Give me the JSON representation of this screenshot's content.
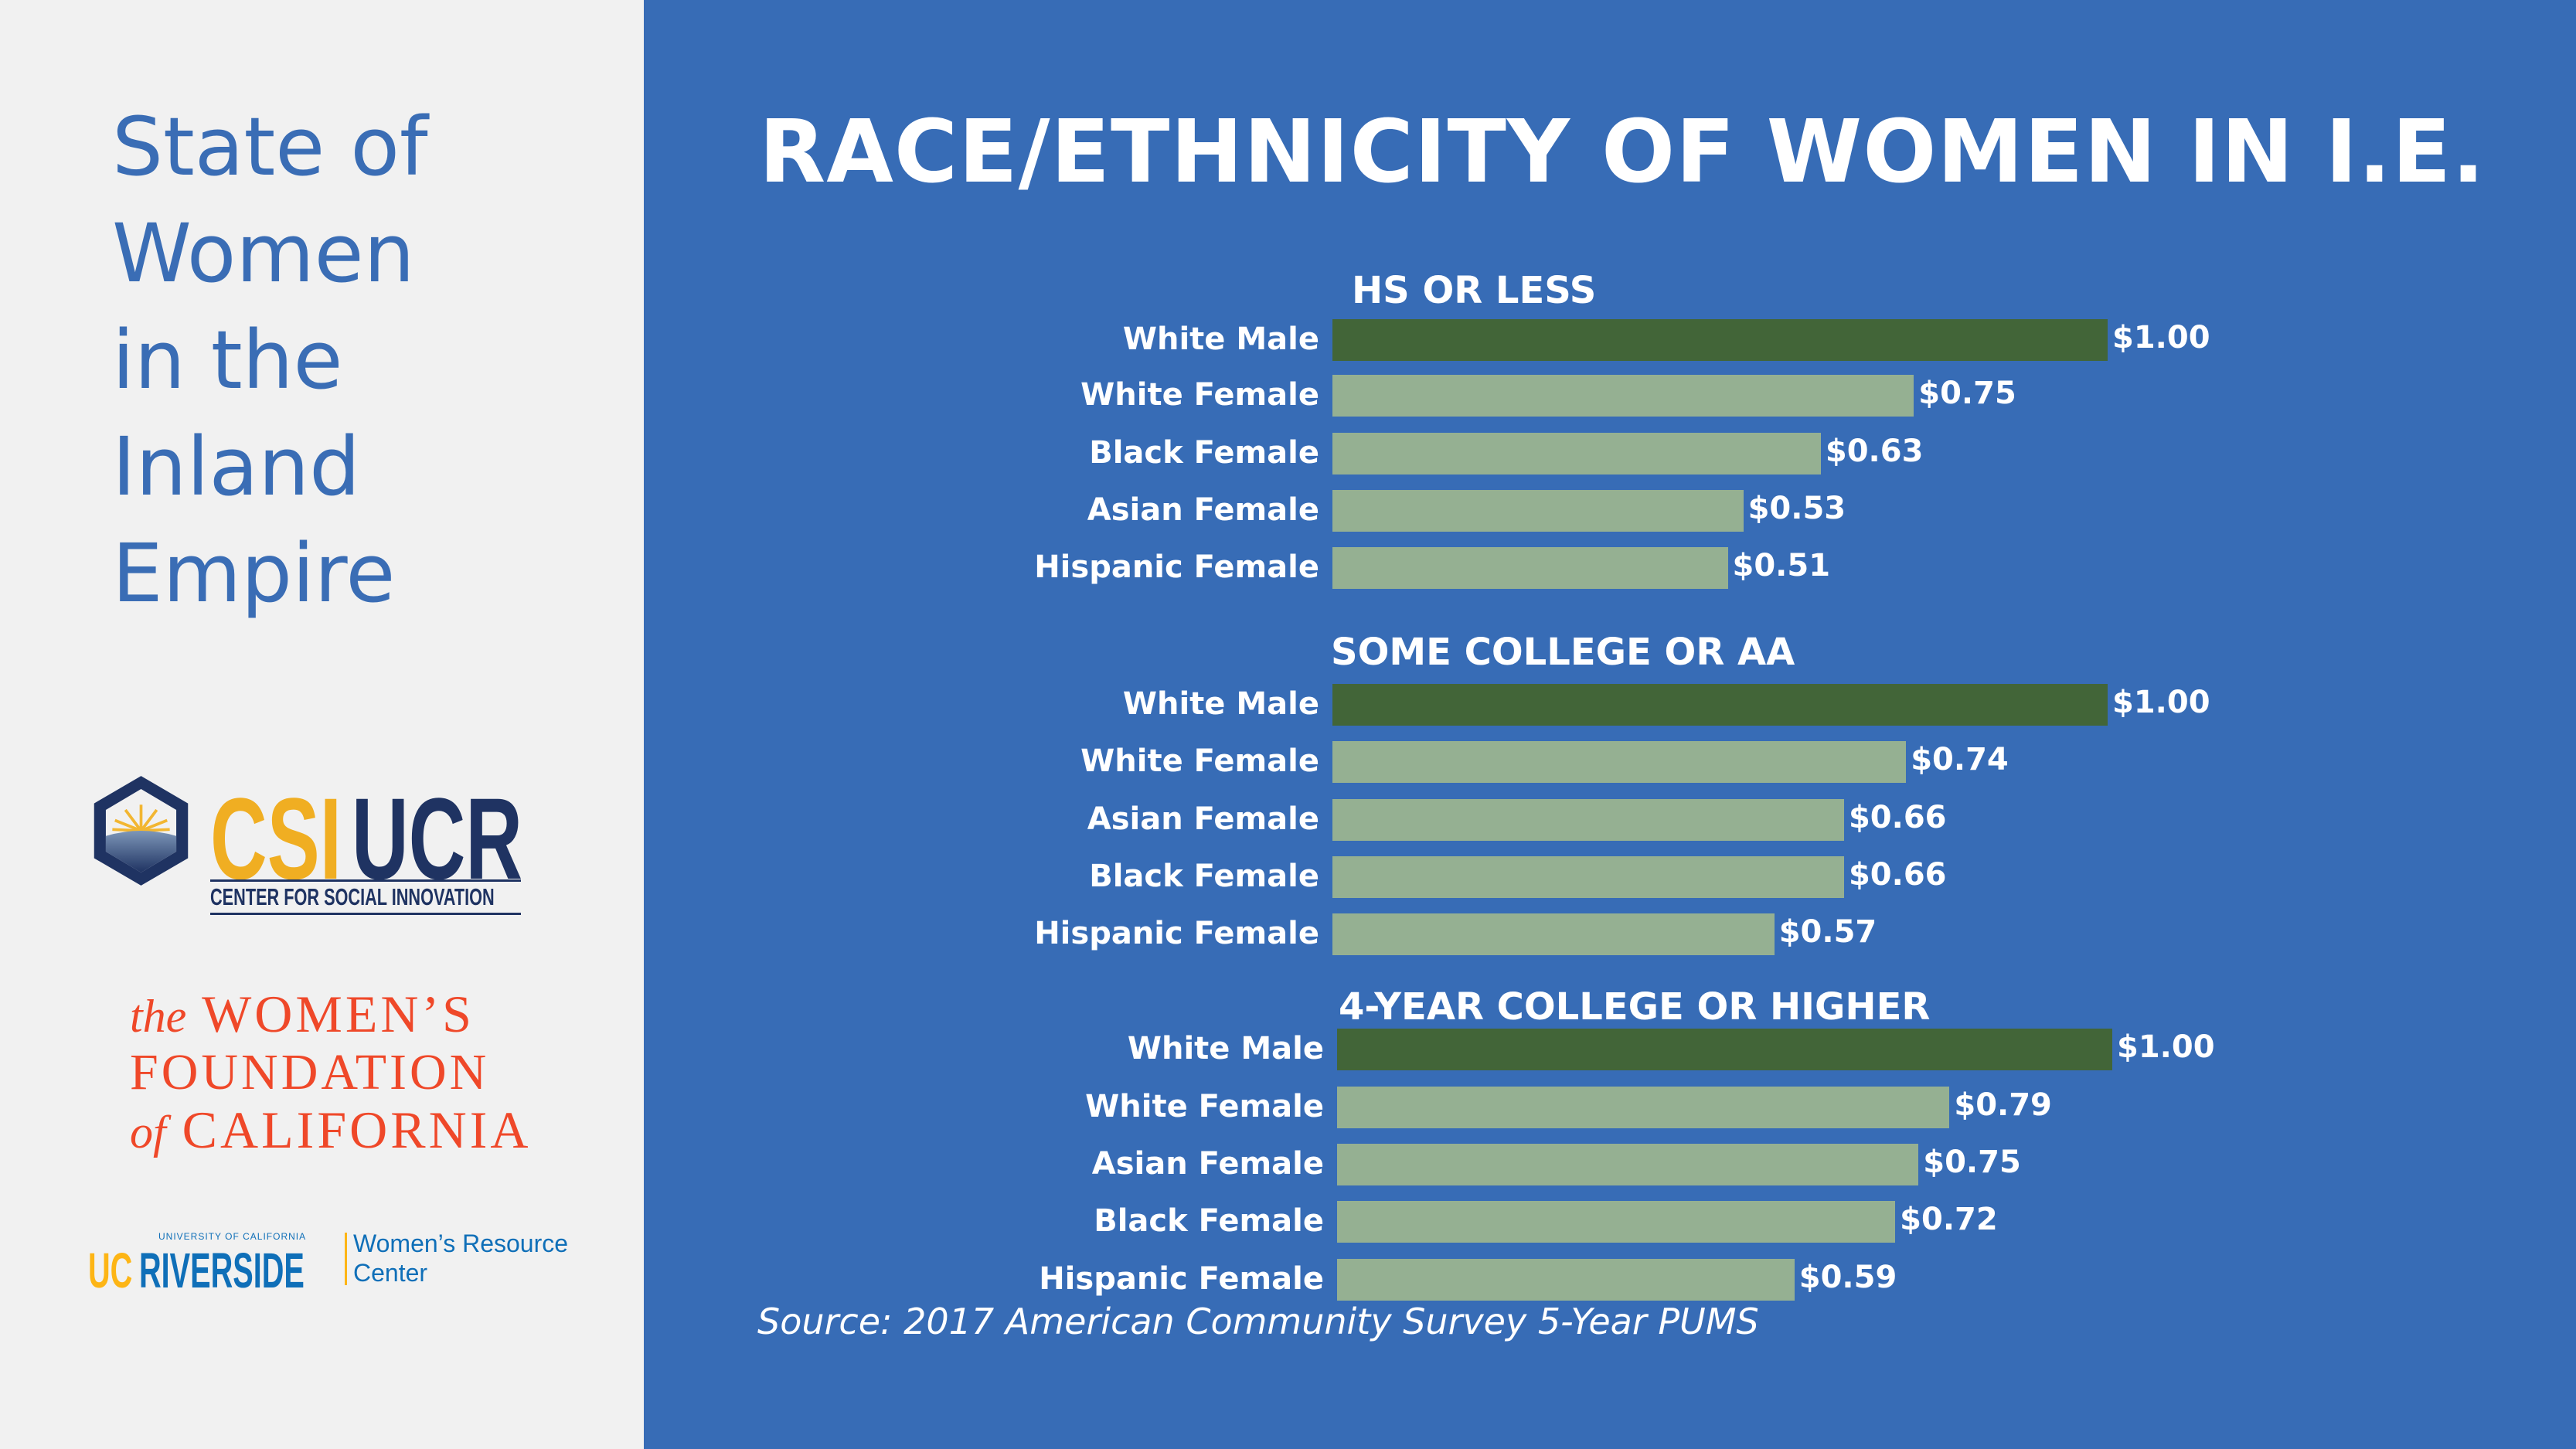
{
  "sidebar": {
    "title_lines": [
      "State of",
      "Women",
      "in the",
      "Inland",
      "Empire"
    ],
    "logos": {
      "csi": {
        "part1": "CSI",
        "part2": "UCR",
        "subtitle": "CENTER FOR SOCIAL INNOVATION"
      },
      "womens_foundation": {
        "line1_small": "the",
        "line1": "WOMEN’S",
        "line2": "FOUNDATION",
        "line3_small": "of",
        "line3": "CALIFORNIA"
      },
      "ucr": {
        "uc": "UC",
        "riverside": "RIVERSIDE",
        "univ": "UNIVERSITY OF CALIFORNIA",
        "wrc1": "Women’s Resource",
        "wrc2": "Center"
      }
    }
  },
  "colors": {
    "background": "#376cb6",
    "sidebar": "#f1f1f1",
    "reference_bar": "#426538",
    "female_bar": "#95b092",
    "title_blue": "#3a6db5"
  },
  "chart_data": {
    "type": "bar",
    "orientation": "horizontal",
    "title": "RACE/ETHNICITY OF WOMEN IN I.E.",
    "groups": [
      {
        "heading": "HS OR LESS",
        "categories": [
          "White Male",
          "White Female",
          "Black Female",
          "Asian Female",
          "Hispanic Female"
        ],
        "values": [
          1.0,
          0.75,
          0.63,
          0.53,
          0.51
        ],
        "labels": [
          "$1.00",
          "$0.75",
          "$0.63",
          "$0.53",
          "$0.51"
        ]
      },
      {
        "heading": "SOME COLLEGE OR AA",
        "categories": [
          "White Male",
          "White Female",
          "Asian Female",
          "Black Female",
          "Hispanic Female"
        ],
        "values": [
          1.0,
          0.74,
          0.66,
          0.66,
          0.57
        ],
        "labels": [
          "$1.00",
          "$0.74",
          "$0.66",
          "$0.66",
          "$0.57"
        ]
      },
      {
        "heading": "4-YEAR COLLEGE OR HIGHER",
        "categories": [
          "White Male",
          "White Female",
          "Asian Female",
          "Black Female",
          "Hispanic Female"
        ],
        "values": [
          1.0,
          0.79,
          0.75,
          0.72,
          0.59
        ],
        "labels": [
          "$1.00",
          "$0.79",
          "$0.75",
          "$0.72",
          "$0.59"
        ]
      }
    ],
    "xlim": [
      0,
      1.0
    ],
    "grid": false,
    "source": "Source: 2017 American Community Survey 5-Year PUMS"
  }
}
